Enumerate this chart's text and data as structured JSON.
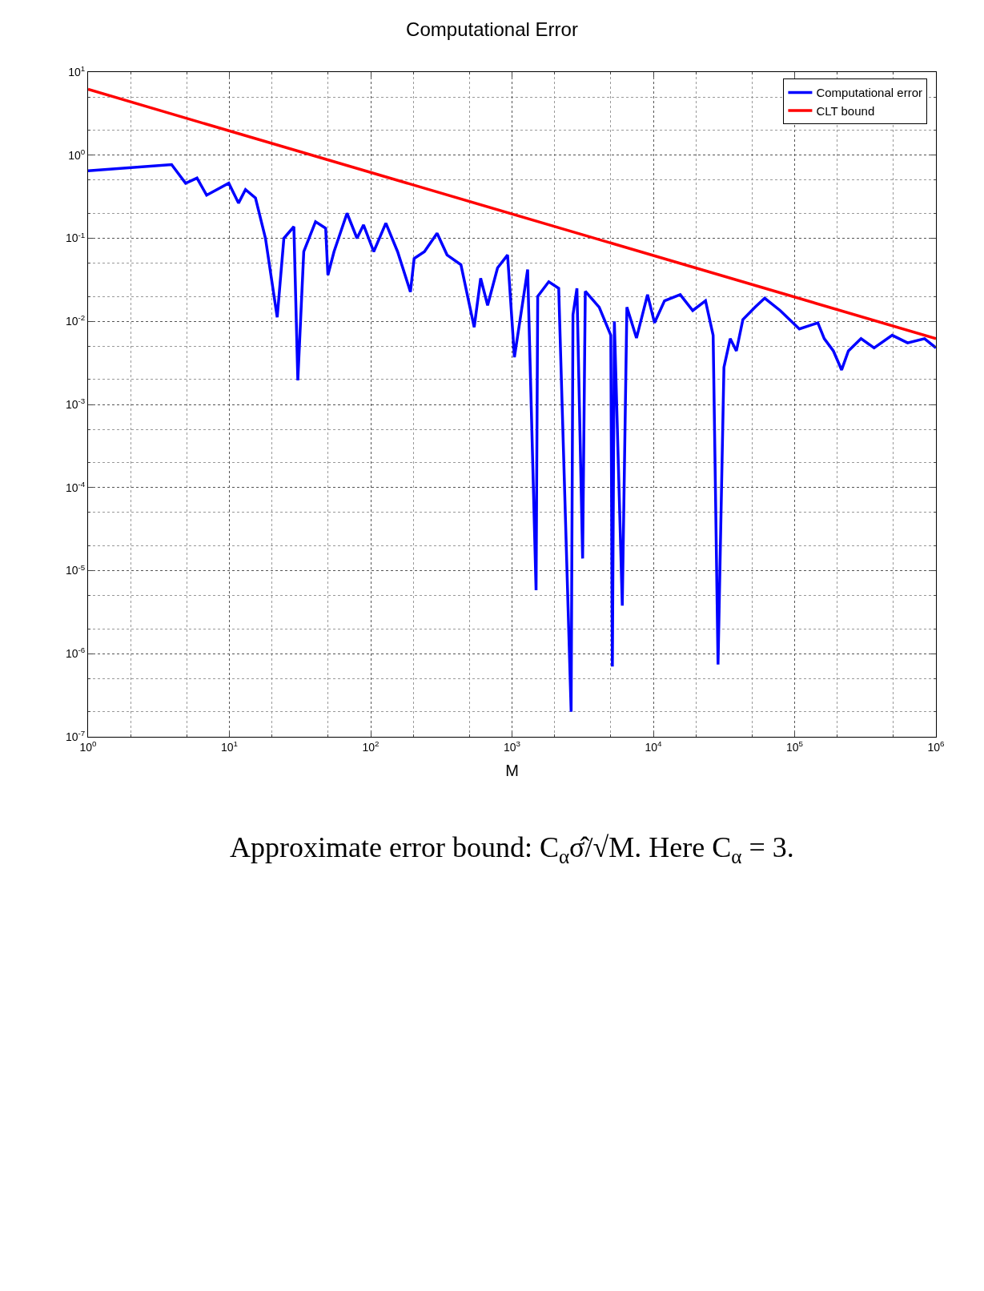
{
  "chart_data": {
    "type": "line",
    "title": "Computational Error",
    "xlabel": "M",
    "log": "xy",
    "grid": true,
    "legend": "top right",
    "line_style": "solid",
    "marker": "none",
    "xlim": [
      1,
      1000000
    ],
    "xticks": [
      {
        "value": 1,
        "label": "10$^{0}$"
      },
      {
        "value": 10,
        "label": "10$^{1}$"
      },
      {
        "value": 100,
        "label": "10$^{2}$"
      },
      {
        "value": 1000,
        "label": "10$^{3}$"
      },
      {
        "value": 10000,
        "label": "10$^{4}$"
      },
      {
        "value": 100000,
        "label": "10$^{5}$"
      },
      {
        "value": 1000000,
        "label": "10$^{6}$"
      }
    ],
    "ylim": [
      1e-07,
      10
    ],
    "yticks": [
      {
        "value": 1e-07,
        "label": "10$^{-7}$"
      },
      {
        "value": 1e-06,
        "label": "10$^{-6}$"
      },
      {
        "value": 1e-05,
        "label": "10$^{-5}$"
      },
      {
        "value": 0.0001,
        "label": "10$^{-4}$"
      },
      {
        "value": 0.001,
        "label": "10$^{-3}$"
      },
      {
        "value": 0.01,
        "label": "10$^{-2}$"
      },
      {
        "value": 0.1,
        "label": "10$^{-1}$"
      },
      {
        "value": 1,
        "label": "10$^{0}$"
      },
      {
        "value": 10,
        "label": "10$^{1}$"
      }
    ],
    "series": [
      {
        "name": "Computational error",
        "color": "#0000ff",
        "x": [
          1,
          3.9,
          4.9,
          5.9,
          6.9,
          9.9,
          11.6,
          13,
          15.3,
          18,
          21.8,
          24.3,
          28.6,
          30.5,
          33.6,
          40.7,
          48,
          49.8,
          55,
          68,
          80,
          89,
          105,
          128,
          155,
          191,
          203,
          240,
          295,
          347,
          435,
          540,
          600,
          672,
          790,
          930,
          1040,
          1290,
          1480,
          1520,
          1820,
          2140,
          2620,
          2700,
          2880,
          3160,
          3300,
          4140,
          5000,
          5130,
          5300,
          6030,
          6500,
          7600,
          9100,
          10200,
          12000,
          15500,
          19000,
          23400,
          26500,
          28700,
          31600,
          35000,
          38700,
          43000,
          52500,
          61400,
          79000,
          108000,
          146000,
          162000,
          188000,
          215000,
          240000,
          295000,
          365000,
          490000,
          630000,
          830000,
          1000000
        ],
        "values": [
          0.65,
          0.77,
          0.46,
          0.53,
          0.33,
          0.46,
          0.265,
          0.385,
          0.305,
          0.1,
          0.0112,
          0.1,
          0.138,
          0.00195,
          0.069,
          0.158,
          0.132,
          0.036,
          0.069,
          0.2,
          0.1,
          0.145,
          0.069,
          0.152,
          0.069,
          0.0226,
          0.057,
          0.069,
          0.115,
          0.063,
          0.048,
          0.0085,
          0.033,
          0.0156,
          0.044,
          0.063,
          0.0037,
          0.042,
          5.8e-06,
          0.02,
          0.03,
          0.025,
          2e-07,
          0.012,
          0.025,
          1.4e-05,
          0.023,
          0.0148,
          0.0068,
          7e-07,
          0.01,
          3.8e-06,
          0.0148,
          0.0063,
          0.021,
          0.0096,
          0.0177,
          0.021,
          0.0135,
          0.0177,
          0.0068,
          7.4e-07,
          0.0028,
          0.0062,
          0.0044,
          0.0105,
          0.0148,
          0.019,
          0.0135,
          0.0081,
          0.0096,
          0.0062,
          0.0044,
          0.0026,
          0.0044,
          0.0062,
          0.0048,
          0.0068,
          0.0055,
          0.0062,
          0.0048
        ]
      },
      {
        "name": "CLT bound",
        "color": "#ff0000",
        "x": [
          1,
          1000000
        ],
        "values": [
          6.2,
          0.0062
        ]
      }
    ],
    "annotations": [
      "Approximate error bound: C$_{α}$σ̂/√M. Here C$_{α}$ = 3."
    ]
  }
}
